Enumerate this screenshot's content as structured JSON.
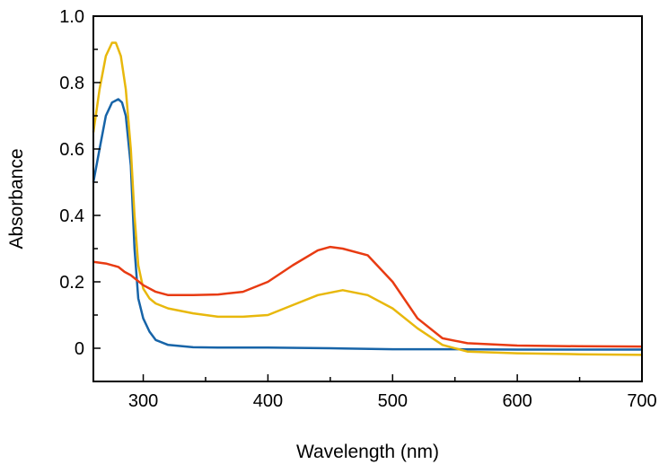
{
  "chart_data": {
    "type": "line",
    "xlabel": "Wavelength (nm)",
    "ylabel": "Absorbance",
    "xlim": [
      260,
      700
    ],
    "ylim": [
      -0.1,
      1.0
    ],
    "x_ticks": [
      300,
      400,
      500,
      600,
      700
    ],
    "x_tick_labels": [
      "300",
      "400",
      "500",
      "600",
      "700"
    ],
    "y_ticks": [
      0,
      0.2,
      0.4,
      0.6,
      0.8,
      1.0
    ],
    "y_tick_labels": [
      "0",
      "0.2",
      "0.4",
      "0.6",
      "0.8",
      "1.0"
    ],
    "grid": false,
    "legend": false,
    "series": [
      {
        "color": "#1764a8",
        "x": [
          260,
          265,
          270,
          275,
          280,
          283,
          286,
          290,
          293,
          296,
          300,
          305,
          310,
          320,
          340,
          360,
          380,
          400,
          450,
          500,
          550,
          600,
          650,
          700
        ],
        "y": [
          0.5,
          0.6,
          0.7,
          0.74,
          0.75,
          0.74,
          0.7,
          0.55,
          0.3,
          0.15,
          0.09,
          0.05,
          0.025,
          0.01,
          0.003,
          0.002,
          0.002,
          0.002,
          0.0,
          -0.003,
          -0.003,
          -0.004,
          -0.004,
          -0.004
        ]
      },
      {
        "color": "#e8b80c",
        "x": [
          260,
          265,
          270,
          275,
          278,
          282,
          286,
          290,
          293,
          296,
          300,
          305,
          310,
          320,
          340,
          360,
          380,
          400,
          420,
          440,
          460,
          480,
          500,
          520,
          540,
          560,
          600,
          650,
          700
        ],
        "y": [
          0.65,
          0.78,
          0.88,
          0.92,
          0.92,
          0.88,
          0.78,
          0.6,
          0.4,
          0.25,
          0.18,
          0.15,
          0.135,
          0.12,
          0.105,
          0.095,
          0.095,
          0.1,
          0.13,
          0.16,
          0.175,
          0.16,
          0.12,
          0.06,
          0.01,
          -0.01,
          -0.015,
          -0.018,
          -0.02
        ]
      },
      {
        "color": "#e83b12",
        "x": [
          260,
          270,
          280,
          285,
          290,
          300,
          310,
          320,
          340,
          360,
          380,
          400,
          420,
          440,
          450,
          460,
          480,
          500,
          520,
          540,
          560,
          600,
          650,
          700
        ],
        "y": [
          0.26,
          0.255,
          0.245,
          0.23,
          0.22,
          0.19,
          0.17,
          0.16,
          0.16,
          0.162,
          0.17,
          0.2,
          0.25,
          0.295,
          0.305,
          0.3,
          0.28,
          0.2,
          0.09,
          0.03,
          0.015,
          0.008,
          0.006,
          0.005
        ]
      }
    ]
  }
}
